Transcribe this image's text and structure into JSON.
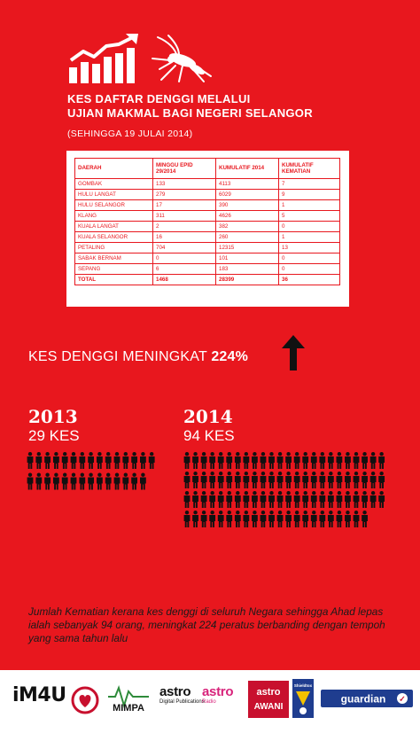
{
  "header": {
    "icons": [
      "rising-bar-chart-icon",
      "mosquito-icon"
    ],
    "title_line1": "KES DAFTAR DENGGI MELALUI",
    "title_line2": "UJIAN MAKMAL BAGI NEGERI SELANGOR",
    "subtitle": "(SEHINGGA 19 JULAI 2014)"
  },
  "table": {
    "headers": [
      "DAERAH",
      "MINGGU EPID 29/2014",
      "KUMULATIF 2014",
      "KUMULATIF KEMATIAN"
    ],
    "rows": [
      [
        "GOMBAK",
        "133",
        "4113",
        "7"
      ],
      [
        "HULU LANGAT",
        "279",
        "6029",
        "9"
      ],
      [
        "HULU SELANGOR",
        "17",
        "390",
        "1"
      ],
      [
        "KLANG",
        "311",
        "4626",
        "5"
      ],
      [
        "KUALA LANGAT",
        "2",
        "382",
        "0"
      ],
      [
        "KUALA SELANGOR",
        "16",
        "260",
        "1"
      ],
      [
        "PETALING",
        "704",
        "12315",
        "13"
      ],
      [
        "SABAK BERNAM",
        "0",
        "101",
        "0"
      ],
      [
        "SEPANG",
        "6",
        "183",
        "0"
      ]
    ],
    "total": [
      "TOTAL",
      "1468",
      "28399",
      "36"
    ]
  },
  "increase": {
    "text": "KES DENGGI MENINGKAT",
    "percent": "224%",
    "icon": "up-arrow-icon"
  },
  "comparison": {
    "year_a": "2013",
    "cases_a": "29 KES",
    "people_a_count": 29,
    "year_b": "2014",
    "cases_b": "94 KES",
    "people_b_count": 94,
    "icon": "person-icon"
  },
  "paragraph": "Jumlah Kematian kerana kes denggi di seluruh Negara sehingga Ahad lepas ialah sebanyak 94 orang, meningkat 224 peratus berbanding dengan tempoh yang sama tahun lalu",
  "footer": {
    "im4u": "iM4U",
    "mimpa": "MIMPA",
    "astro_dp": "astro",
    "astro_dp_sub": "Digital Publications",
    "astro_radio": "astro",
    "astro_radio_sub": "Radio",
    "awani_top": "astro",
    "awani_bottom": "AWANI",
    "shieldtox": "Shieldtox",
    "guardian": "guardian",
    "colors": {
      "awani": "#c8102e",
      "guardian": "#1f3d8f",
      "shieldtox": "#1f3d8f",
      "astro_radio": "#d8237b"
    }
  }
}
